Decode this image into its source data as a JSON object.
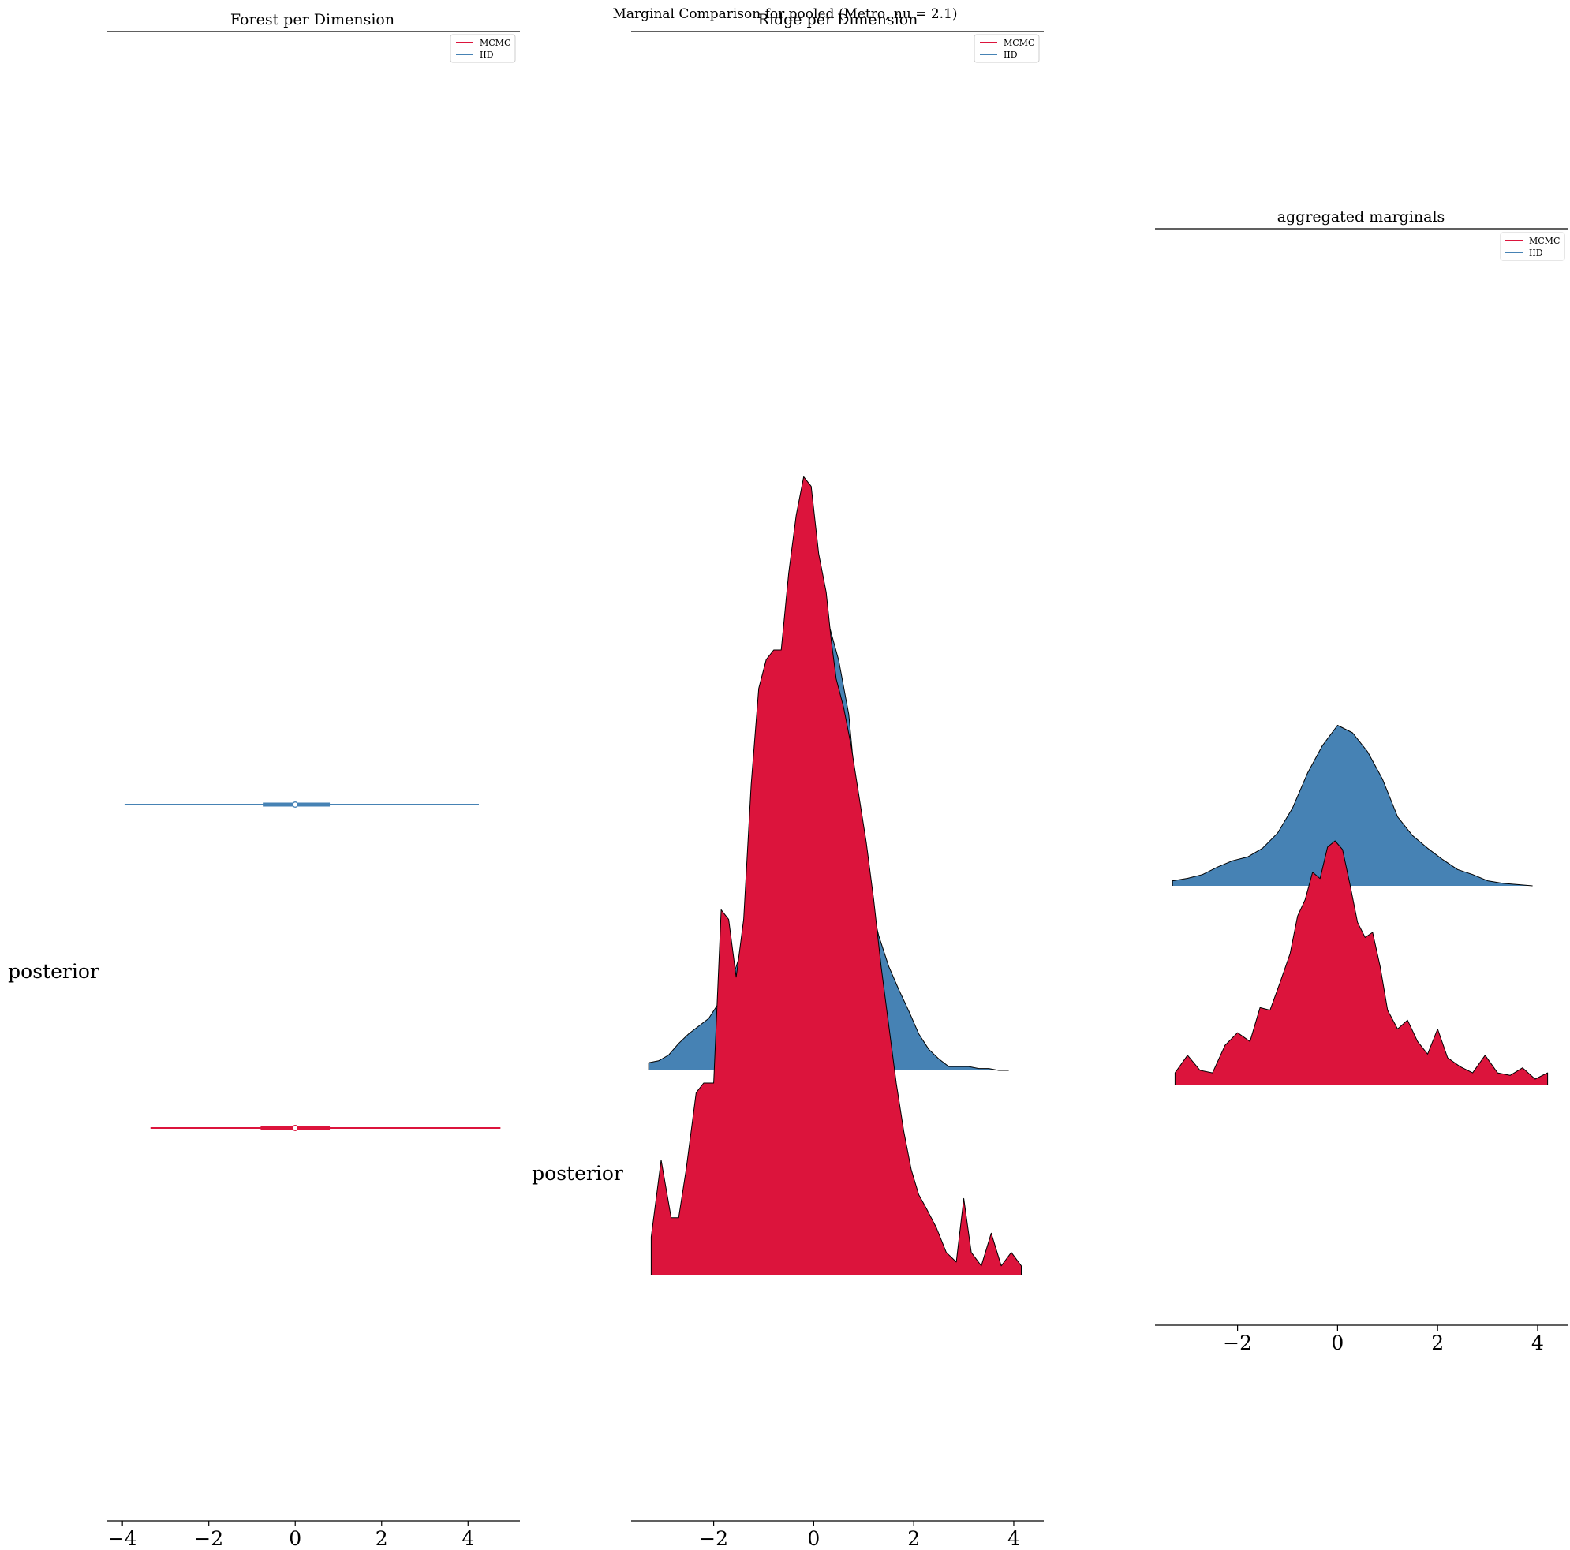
{
  "figure": {
    "suptitle": "Marginal Comparison for pooled (Metro, nu = 2.1)"
  },
  "colors": {
    "mcmc": "#dc143c",
    "iid": "#4682b4",
    "outline": "#000000"
  },
  "legend": {
    "placement": "top-right",
    "entries": [
      {
        "label": "MCMC",
        "color": "#dc143c"
      },
      {
        "label": "IID",
        "color": "#4682b4"
      }
    ]
  },
  "chart_data": [
    {
      "type": "forest",
      "title": "Forest per Dimension",
      "ylabel_text": "posterior",
      "xlim": [
        -4.35,
        5.2
      ],
      "xticks": [
        -4,
        -2,
        0,
        2,
        4
      ],
      "xtick_labels": [
        "−4",
        "−2",
        "0",
        "2",
        "4"
      ],
      "grid": false,
      "series": [
        {
          "name": "IID",
          "center": 0.0,
          "inner": [
            -0.75,
            0.8
          ],
          "outer": [
            -3.95,
            4.25
          ]
        },
        {
          "name": "MCMC",
          "center": 0.0,
          "inner": [
            -0.8,
            0.8
          ],
          "outer": [
            -3.35,
            4.75
          ]
        }
      ]
    },
    {
      "type": "ridge",
      "title": "Ridge per Dimension",
      "ylabel_text": "posterior",
      "xlim": [
        -3.65,
        4.6
      ],
      "xticks": [
        -2,
        0,
        2,
        4
      ],
      "xtick_labels": [
        "−2",
        "0",
        "2",
        "4"
      ],
      "grid": false,
      "series": [
        {
          "name": "IID",
          "x": [
            -3.3,
            -3.1,
            -2.9,
            -2.7,
            -2.5,
            -2.3,
            -2.1,
            -1.9,
            -1.7,
            -1.5,
            -1.3,
            -1.1,
            -0.9,
            -0.7,
            -0.5,
            -0.3,
            -0.1,
            0.1,
            0.3,
            0.5,
            0.7,
            0.9,
            1.1,
            1.3,
            1.5,
            1.7,
            1.9,
            2.1,
            2.3,
            2.5,
            2.7,
            2.9,
            3.1,
            3.3,
            3.5,
            3.7,
            3.9
          ],
          "y": [
            0.04,
            0.05,
            0.08,
            0.14,
            0.19,
            0.23,
            0.27,
            0.35,
            0.42,
            0.58,
            0.75,
            0.92,
            1.2,
            1.58,
            1.93,
            2.22,
            2.37,
            2.43,
            2.32,
            2.13,
            1.85,
            1.3,
            0.92,
            0.7,
            0.54,
            0.42,
            0.31,
            0.19,
            0.11,
            0.06,
            0.02,
            0.02,
            0.02,
            0.01,
            0.01,
            0.0,
            0.0
          ]
        },
        {
          "name": "MCMC",
          "x": [
            -3.25,
            -3.05,
            -2.85,
            -2.7,
            -2.55,
            -2.35,
            -2.2,
            -2.0,
            -1.85,
            -1.7,
            -1.55,
            -1.4,
            -1.25,
            -1.1,
            -0.95,
            -0.8,
            -0.65,
            -0.5,
            -0.35,
            -0.2,
            -0.05,
            0.1,
            0.25,
            0.35,
            0.45,
            0.6,
            0.75,
            0.9,
            1.05,
            1.2,
            1.35,
            1.5,
            1.65,
            1.8,
            1.95,
            2.1,
            2.25,
            2.45,
            2.65,
            2.85,
            3.0,
            3.15,
            3.35,
            3.55,
            3.75,
            3.95,
            4.15
          ],
          "y": [
            0.2,
            0.6,
            0.3,
            0.3,
            0.55,
            0.95,
            1.0,
            1.0,
            1.9,
            1.85,
            1.55,
            1.85,
            2.55,
            3.05,
            3.2,
            3.25,
            3.25,
            3.65,
            3.95,
            4.15,
            4.1,
            3.75,
            3.55,
            3.3,
            3.1,
            2.95,
            2.75,
            2.5,
            2.25,
            1.95,
            1.6,
            1.3,
            1.0,
            0.75,
            0.55,
            0.42,
            0.35,
            0.25,
            0.12,
            0.07,
            0.4,
            0.12,
            0.05,
            0.22,
            0.05,
            0.12,
            0.05
          ]
        }
      ]
    },
    {
      "type": "ridge",
      "title": "aggregated marginals",
      "xlim": [
        -3.65,
        4.6
      ],
      "xticks": [
        -2,
        0,
        2,
        4
      ],
      "xtick_labels": [
        "−2",
        "0",
        "2",
        "4"
      ],
      "grid": false,
      "series": [
        {
          "name": "IID",
          "x": [
            -3.3,
            -3.0,
            -2.7,
            -2.4,
            -2.1,
            -1.8,
            -1.5,
            -1.2,
            -0.9,
            -0.6,
            -0.3,
            0.0,
            0.3,
            0.6,
            0.9,
            1.2,
            1.5,
            1.8,
            2.1,
            2.4,
            2.7,
            3.0,
            3.3,
            3.6,
            3.9
          ],
          "y": [
            0.04,
            0.06,
            0.09,
            0.15,
            0.2,
            0.23,
            0.3,
            0.42,
            0.62,
            0.9,
            1.12,
            1.28,
            1.22,
            1.07,
            0.85,
            0.55,
            0.4,
            0.3,
            0.21,
            0.13,
            0.09,
            0.04,
            0.02,
            0.01,
            0.0
          ]
        },
        {
          "name": "MCMC",
          "x": [
            -3.25,
            -3.0,
            -2.75,
            -2.5,
            -2.25,
            -2.0,
            -1.75,
            -1.55,
            -1.35,
            -1.15,
            -0.95,
            -0.8,
            -0.65,
            -0.5,
            -0.35,
            -0.2,
            -0.05,
            0.1,
            0.25,
            0.4,
            0.55,
            0.7,
            0.85,
            1.0,
            1.2,
            1.4,
            1.6,
            1.8,
            2.0,
            2.2,
            2.45,
            2.7,
            2.95,
            3.2,
            3.45,
            3.7,
            3.95,
            4.2
          ],
          "y": [
            0.1,
            0.24,
            0.12,
            0.1,
            0.32,
            0.42,
            0.35,
            0.62,
            0.6,
            0.82,
            1.05,
            1.35,
            1.48,
            1.7,
            1.65,
            1.9,
            1.95,
            1.88,
            1.6,
            1.3,
            1.18,
            1.22,
            0.95,
            0.6,
            0.45,
            0.52,
            0.35,
            0.25,
            0.45,
            0.22,
            0.15,
            0.1,
            0.24,
            0.1,
            0.08,
            0.14,
            0.05,
            0.1
          ]
        }
      ]
    }
  ]
}
